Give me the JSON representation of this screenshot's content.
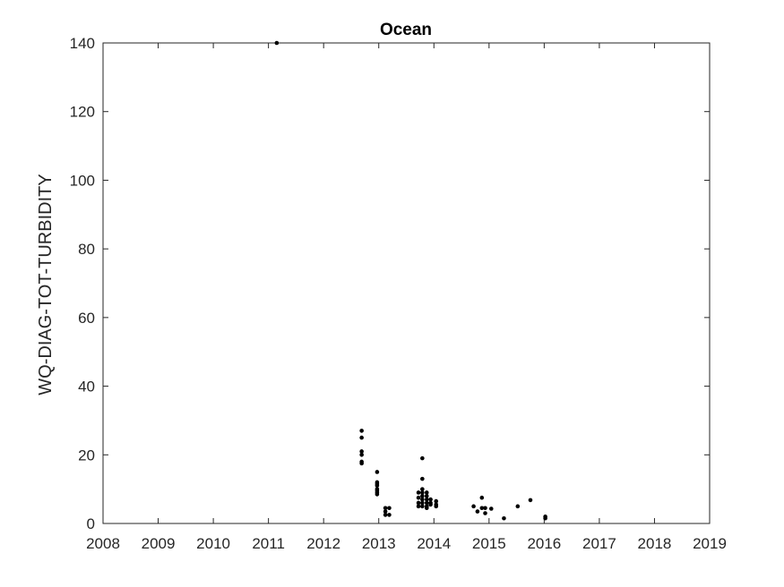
{
  "chart_data": {
    "type": "scatter",
    "title": "Ocean",
    "xlabel": "",
    "ylabel": "WQ-DIAG-TOT-TURBIDITY",
    "xlim": [
      2008,
      2019
    ],
    "ylim": [
      0,
      140
    ],
    "x_ticks": [
      "2008",
      "2009",
      "2010",
      "2011",
      "2012",
      "2013",
      "2014",
      "2015",
      "2016",
      "2017",
      "2018",
      "2019"
    ],
    "y_ticks": [
      "0",
      "20",
      "40",
      "60",
      "80",
      "100",
      "120",
      "140"
    ],
    "grid": false,
    "legend": "none",
    "marker_color": "#000000",
    "series": [
      {
        "points": [
          [
            2011.15,
            140
          ],
          [
            2012.69,
            27
          ],
          [
            2012.69,
            25
          ],
          [
            2012.69,
            21
          ],
          [
            2012.69,
            20
          ],
          [
            2012.69,
            18
          ],
          [
            2012.69,
            17.5
          ],
          [
            2012.97,
            15
          ],
          [
            2012.97,
            12
          ],
          [
            2012.97,
            11.5
          ],
          [
            2012.97,
            11
          ],
          [
            2012.97,
            10
          ],
          [
            2012.97,
            9.5
          ],
          [
            2012.97,
            9
          ],
          [
            2012.97,
            8.5
          ],
          [
            2013.12,
            4.5
          ],
          [
            2013.12,
            3.5
          ],
          [
            2013.12,
            2.5
          ],
          [
            2013.19,
            4.5
          ],
          [
            2013.19,
            2.5
          ],
          [
            2013.72,
            9
          ],
          [
            2013.72,
            7.5
          ],
          [
            2013.72,
            6
          ],
          [
            2013.72,
            5
          ],
          [
            2013.79,
            19
          ],
          [
            2013.79,
            13
          ],
          [
            2013.79,
            10
          ],
          [
            2013.79,
            9
          ],
          [
            2013.79,
            8
          ],
          [
            2013.79,
            7
          ],
          [
            2013.79,
            6
          ],
          [
            2013.79,
            5
          ],
          [
            2013.87,
            9
          ],
          [
            2013.87,
            8
          ],
          [
            2013.87,
            7
          ],
          [
            2013.87,
            6
          ],
          [
            2013.87,
            5
          ],
          [
            2013.87,
            4.5
          ],
          [
            2013.94,
            7
          ],
          [
            2013.94,
            6
          ],
          [
            2013.94,
            5.5
          ],
          [
            2014.04,
            6.5
          ],
          [
            2014.04,
            5.5
          ],
          [
            2014.04,
            5
          ],
          [
            2014.72,
            5
          ],
          [
            2014.79,
            3.5
          ],
          [
            2014.87,
            7.5
          ],
          [
            2014.87,
            4.5
          ],
          [
            2014.93,
            4.5
          ],
          [
            2014.93,
            3
          ],
          [
            2015.04,
            4.3
          ],
          [
            2015.27,
            1.5
          ],
          [
            2015.52,
            5
          ],
          [
            2015.75,
            6.8
          ],
          [
            2016.02,
            2
          ],
          [
            2016.02,
            1.5
          ]
        ]
      }
    ]
  }
}
